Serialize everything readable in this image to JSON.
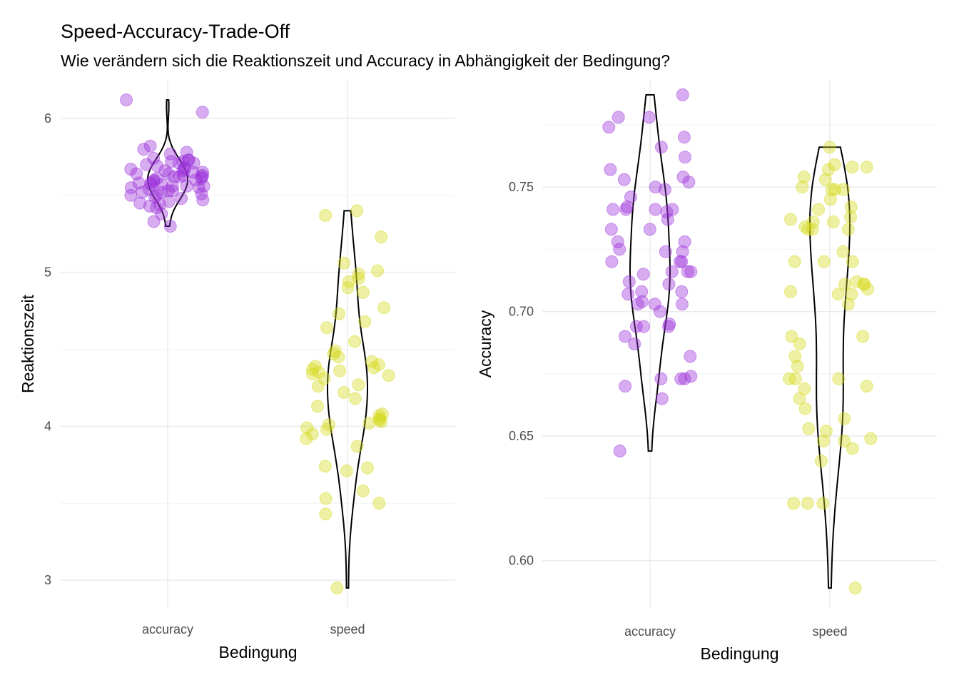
{
  "title": "Speed-Accuracy-Trade-Off",
  "subtitle": "Wie verändern sich die Reaktionszeit und Accuracy in Abhängigkeit der Bedingung?",
  "colors": {
    "accuracy": "#9b30d9",
    "speed": "#d4d91a",
    "violin": "#000000"
  },
  "chart_data": [
    {
      "type": "scatter",
      "subtype": "jitter-with-violin",
      "xlabel": "Bedingung",
      "ylabel": "Reaktionszeit",
      "categories": [
        "accuracy",
        "speed"
      ],
      "ylim": [
        2.82,
        6.25
      ],
      "yticks": [
        "3",
        "4",
        "5",
        "6"
      ],
      "series": [
        {
          "group": "accuracy",
          "values": [
            6.12,
            6.04,
            5.82,
            5.8,
            5.78,
            5.77,
            5.74,
            5.73,
            5.73,
            5.72,
            5.72,
            5.71,
            5.71,
            5.7,
            5.69,
            5.68,
            5.67,
            5.67,
            5.66,
            5.66,
            5.65,
            5.65,
            5.64,
            5.64,
            5.63,
            5.63,
            5.62,
            5.62,
            5.62,
            5.61,
            5.61,
            5.6,
            5.6,
            5.59,
            5.58,
            5.58,
            5.57,
            5.57,
            5.56,
            5.56,
            5.56,
            5.55,
            5.55,
            5.54,
            5.53,
            5.53,
            5.52,
            5.52,
            5.51,
            5.5,
            5.5,
            5.49,
            5.48,
            5.47,
            5.46,
            5.45,
            5.44,
            5.43,
            5.42,
            5.38,
            5.33,
            5.3
          ]
        },
        {
          "group": "speed",
          "values": [
            5.4,
            5.37,
            5.23,
            5.06,
            5.01,
            4.99,
            4.96,
            4.94,
            4.9,
            4.87,
            4.77,
            4.73,
            4.68,
            4.64,
            4.55,
            4.49,
            4.47,
            4.45,
            4.42,
            4.4,
            4.39,
            4.38,
            4.37,
            4.36,
            4.35,
            4.34,
            4.33,
            4.31,
            4.27,
            4.26,
            4.22,
            4.18,
            4.13,
            4.08,
            4.07,
            4.05,
            4.04,
            4.03,
            4.02,
            4.01,
            3.99,
            3.98,
            3.95,
            3.92,
            3.87,
            3.74,
            3.73,
            3.71,
            3.58,
            3.53,
            3.5,
            3.43,
            2.95
          ]
        }
      ]
    },
    {
      "type": "scatter",
      "subtype": "jitter-with-violin",
      "xlabel": "Bedingung",
      "ylabel": "Accuracy",
      "categories": [
        "accuracy",
        "speed"
      ],
      "ylim": [
        0.581,
        0.793
      ],
      "yticks": [
        "0.60",
        "0.65",
        "0.70",
        "0.75"
      ],
      "series": [
        {
          "group": "accuracy",
          "values": [
            0.787,
            0.778,
            0.778,
            0.774,
            0.77,
            0.766,
            0.762,
            0.757,
            0.754,
            0.753,
            0.752,
            0.75,
            0.749,
            0.746,
            0.742,
            0.741,
            0.741,
            0.741,
            0.741,
            0.74,
            0.737,
            0.733,
            0.733,
            0.728,
            0.728,
            0.725,
            0.724,
            0.724,
            0.72,
            0.72,
            0.72,
            0.716,
            0.716,
            0.716,
            0.715,
            0.712,
            0.711,
            0.708,
            0.708,
            0.707,
            0.704,
            0.703,
            0.703,
            0.703,
            0.7,
            0.695,
            0.694,
            0.694,
            0.694,
            0.69,
            0.687,
            0.682,
            0.674,
            0.673,
            0.673,
            0.673,
            0.67,
            0.665,
            0.644
          ]
        },
        {
          "group": "speed",
          "values": [
            0.766,
            0.759,
            0.758,
            0.758,
            0.757,
            0.754,
            0.753,
            0.75,
            0.749,
            0.749,
            0.749,
            0.745,
            0.742,
            0.741,
            0.738,
            0.737,
            0.736,
            0.736,
            0.734,
            0.733,
            0.733,
            0.733,
            0.724,
            0.72,
            0.72,
            0.72,
            0.712,
            0.711,
            0.711,
            0.711,
            0.709,
            0.708,
            0.707,
            0.707,
            0.703,
            0.69,
            0.69,
            0.687,
            0.682,
            0.678,
            0.673,
            0.673,
            0.673,
            0.67,
            0.669,
            0.665,
            0.661,
            0.657,
            0.653,
            0.652,
            0.649,
            0.648,
            0.648,
            0.645,
            0.64,
            0.623,
            0.623,
            0.623,
            0.589
          ]
        }
      ]
    }
  ]
}
